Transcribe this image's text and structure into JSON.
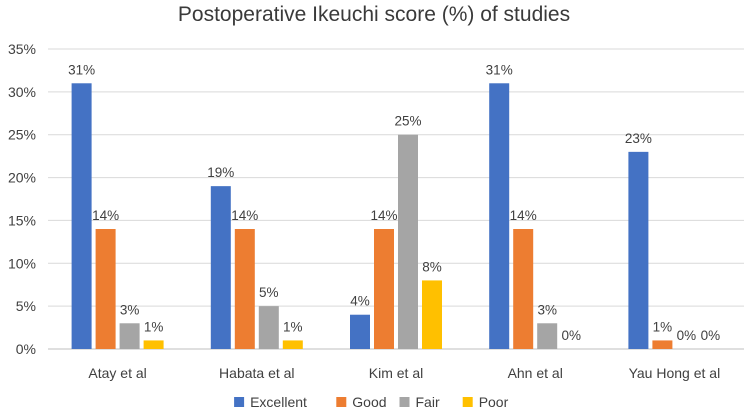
{
  "chart_data": {
    "type": "bar",
    "title": "Postoperative Ikeuchi score (%) of studies",
    "xlabel": "",
    "ylabel": "",
    "categories": [
      "Atay et al",
      "Habata et al",
      "Kim et al",
      "Ahn et al",
      "Yau Hong et al"
    ],
    "series": [
      {
        "name": "Excellent",
        "color": "#4472C4",
        "values": [
          31,
          19,
          4,
          31,
          23
        ]
      },
      {
        "name": "Good",
        "color": "#ED7D31",
        "values": [
          14,
          14,
          14,
          14,
          1
        ]
      },
      {
        "name": "Fair",
        "color": "#A5A5A5",
        "values": [
          3,
          5,
          25,
          3,
          0
        ]
      },
      {
        "name": "Poor",
        "color": "#FFC000",
        "values": [
          1,
          1,
          8,
          0,
          0
        ]
      }
    ],
    "data_labels": [
      [
        "31%",
        "14%",
        "3%",
        "1%"
      ],
      [
        "19%",
        "14%",
        "5%",
        "1%"
      ],
      [
        "4%",
        "14%",
        "25%",
        "8%"
      ],
      [
        "31%",
        "14%",
        "3%",
        "0%"
      ],
      [
        "23%",
        "1%",
        "0%",
        "0%"
      ]
    ],
    "ylim": [
      0,
      35
    ],
    "y_ticks": [
      0,
      5,
      10,
      15,
      20,
      25,
      30,
      35
    ],
    "y_tick_labels": [
      "0%",
      "5%",
      "10%",
      "15%",
      "20%",
      "25%",
      "30%",
      "35%"
    ],
    "grid": true,
    "legend_position": "bottom"
  }
}
